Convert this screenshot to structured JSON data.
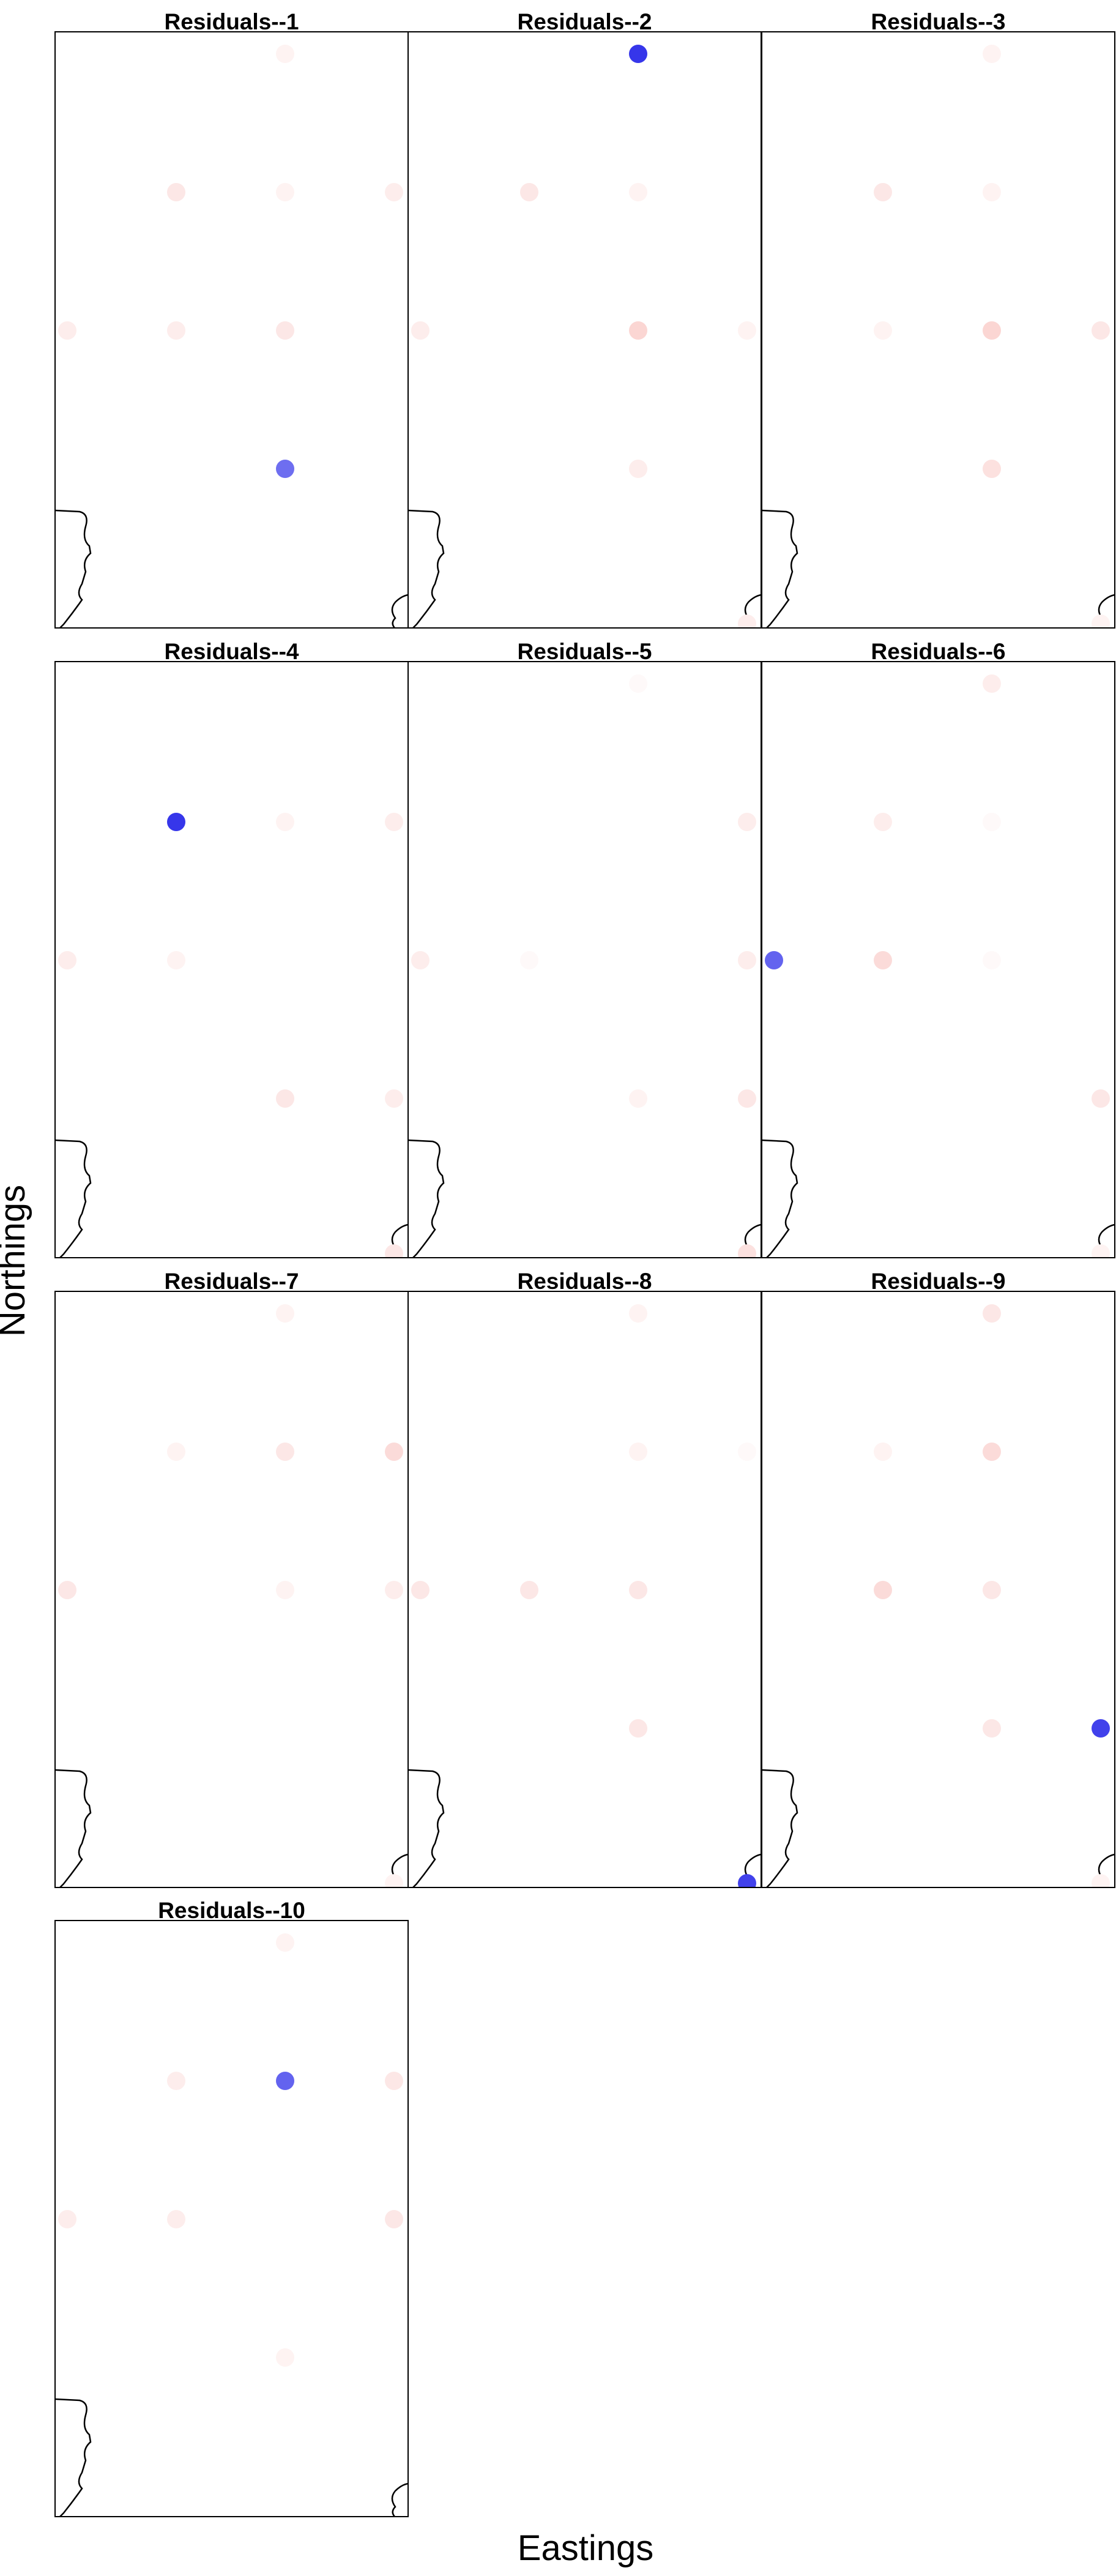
{
  "figure": {
    "xlabel": "Eastings",
    "ylabel": "Northings",
    "point_colors": {
      "negative": "#2020e8",
      "positive": "#f7b5b0"
    },
    "coast_color": "#000000"
  },
  "chart_data": [
    {
      "type": "scatter",
      "title": "Residuals--1",
      "points": [
        {
          "col": 2,
          "row": 0,
          "v": 0.1
        },
        {
          "col": 1,
          "row": 1,
          "v": 0.2
        },
        {
          "col": 2,
          "row": 1,
          "v": 0.1
        },
        {
          "col": 3,
          "row": 1,
          "v": 0.15
        },
        {
          "col": 0,
          "row": 2,
          "v": 0.15
        },
        {
          "col": 1,
          "row": 2,
          "v": 0.15
        },
        {
          "col": 2,
          "row": 2,
          "v": 0.2
        },
        {
          "col": 2,
          "row": 3,
          "v": -0.65
        }
      ]
    },
    {
      "type": "scatter",
      "title": "Residuals--2",
      "points": [
        {
          "col": 2,
          "row": 0,
          "v": -0.9
        },
        {
          "col": 1,
          "row": 1,
          "v": 0.2
        },
        {
          "col": 2,
          "row": 1,
          "v": 0.1
        },
        {
          "col": 0,
          "row": 2,
          "v": 0.15
        },
        {
          "col": 2,
          "row": 2,
          "v": 0.35
        },
        {
          "col": 3,
          "row": 2,
          "v": 0.1
        },
        {
          "col": 2,
          "row": 3,
          "v": 0.15
        },
        {
          "col": 3,
          "row": 4.12,
          "v": 0.15
        }
      ]
    },
    {
      "type": "scatter",
      "title": "Residuals--3",
      "points": [
        {
          "col": 2,
          "row": 0,
          "v": 0.1
        },
        {
          "col": 1,
          "row": 1,
          "v": 0.2
        },
        {
          "col": 2,
          "row": 1,
          "v": 0.1
        },
        {
          "col": 1,
          "row": 2,
          "v": 0.1
        },
        {
          "col": 2,
          "row": 2,
          "v": 0.35
        },
        {
          "col": 3,
          "row": 2,
          "v": 0.2
        },
        {
          "col": 2,
          "row": 3,
          "v": 0.25
        },
        {
          "col": 3,
          "row": 4.12,
          "v": 0.1
        }
      ]
    },
    {
      "type": "scatter",
      "title": "Residuals--4",
      "points": [
        {
          "col": 1,
          "row": 1,
          "v": -0.9
        },
        {
          "col": 2,
          "row": 1,
          "v": 0.1
        },
        {
          "col": 3,
          "row": 1,
          "v": 0.15
        },
        {
          "col": 0,
          "row": 2,
          "v": 0.15
        },
        {
          "col": 1,
          "row": 2,
          "v": 0.1
        },
        {
          "col": 2,
          "row": 3,
          "v": 0.2
        },
        {
          "col": 3,
          "row": 3,
          "v": 0.15
        },
        {
          "col": 3,
          "row": 4.12,
          "v": 0.2
        }
      ]
    },
    {
      "type": "scatter",
      "title": "Residuals--5",
      "points": [
        {
          "col": 2,
          "row": 0,
          "v": 0.05
        },
        {
          "col": 3,
          "row": 1,
          "v": 0.15
        },
        {
          "col": 0,
          "row": 2,
          "v": 0.15
        },
        {
          "col": 1,
          "row": 2,
          "v": 0.05
        },
        {
          "col": 3,
          "row": 2,
          "v": 0.15
        },
        {
          "col": 2,
          "row": 3,
          "v": 0.1
        },
        {
          "col": 3,
          "row": 3,
          "v": 0.2
        },
        {
          "col": 3,
          "row": 4.12,
          "v": 0.25
        }
      ]
    },
    {
      "type": "scatter",
      "title": "Residuals--6",
      "points": [
        {
          "col": 2,
          "row": 0,
          "v": 0.15
        },
        {
          "col": 1,
          "row": 1,
          "v": 0.15
        },
        {
          "col": 2,
          "row": 1,
          "v": 0.05
        },
        {
          "col": 0,
          "row": 2,
          "v": -0.7
        },
        {
          "col": 1,
          "row": 2,
          "v": 0.3
        },
        {
          "col": 2,
          "row": 2,
          "v": 0.05
        },
        {
          "col": 3,
          "row": 3,
          "v": 0.2
        },
        {
          "col": 3,
          "row": 4.12,
          "v": 0.1
        }
      ]
    },
    {
      "type": "scatter",
      "title": "Residuals--7",
      "points": [
        {
          "col": 2,
          "row": 0,
          "v": 0.1
        },
        {
          "col": 1,
          "row": 1,
          "v": 0.1
        },
        {
          "col": 2,
          "row": 1,
          "v": 0.2
        },
        {
          "col": 3,
          "row": 1,
          "v": 0.3
        },
        {
          "col": 0,
          "row": 2,
          "v": 0.2
        },
        {
          "col": 2,
          "row": 2,
          "v": 0.1
        },
        {
          "col": 3,
          "row": 2,
          "v": 0.15
        },
        {
          "col": 3,
          "row": 4.12,
          "v": 0.1
        }
      ]
    },
    {
      "type": "scatter",
      "title": "Residuals--8",
      "points": [
        {
          "col": 2,
          "row": 0,
          "v": 0.1
        },
        {
          "col": 2,
          "row": 1,
          "v": 0.1
        },
        {
          "col": 3,
          "row": 1,
          "v": 0.05
        },
        {
          "col": 0,
          "row": 2,
          "v": 0.2
        },
        {
          "col": 1,
          "row": 2,
          "v": 0.2
        },
        {
          "col": 2,
          "row": 2,
          "v": 0.2
        },
        {
          "col": 2,
          "row": 3,
          "v": 0.2
        },
        {
          "col": 3,
          "row": 4.12,
          "v": -0.85
        }
      ]
    },
    {
      "type": "scatter",
      "title": "Residuals--9",
      "points": [
        {
          "col": 2,
          "row": 0,
          "v": 0.2
        },
        {
          "col": 1,
          "row": 1,
          "v": 0.1
        },
        {
          "col": 2,
          "row": 1,
          "v": 0.3
        },
        {
          "col": 1,
          "row": 2,
          "v": 0.3
        },
        {
          "col": 2,
          "row": 2,
          "v": 0.2
        },
        {
          "col": 2,
          "row": 3,
          "v": 0.2
        },
        {
          "col": 3,
          "row": 3,
          "v": -0.85
        },
        {
          "col": 3,
          "row": 4.12,
          "v": 0.1
        }
      ]
    },
    {
      "type": "scatter",
      "title": "Residuals--10",
      "points": [
        {
          "col": 2,
          "row": 0,
          "v": 0.1
        },
        {
          "col": 1,
          "row": 1,
          "v": 0.15
        },
        {
          "col": 2,
          "row": 1,
          "v": -0.7
        },
        {
          "col": 3,
          "row": 1,
          "v": 0.2
        },
        {
          "col": 0,
          "row": 2,
          "v": 0.15
        },
        {
          "col": 1,
          "row": 2,
          "v": 0.15
        },
        {
          "col": 3,
          "row": 2,
          "v": 0.2
        },
        {
          "col": 2,
          "row": 3,
          "v": 0.1
        }
      ]
    }
  ]
}
